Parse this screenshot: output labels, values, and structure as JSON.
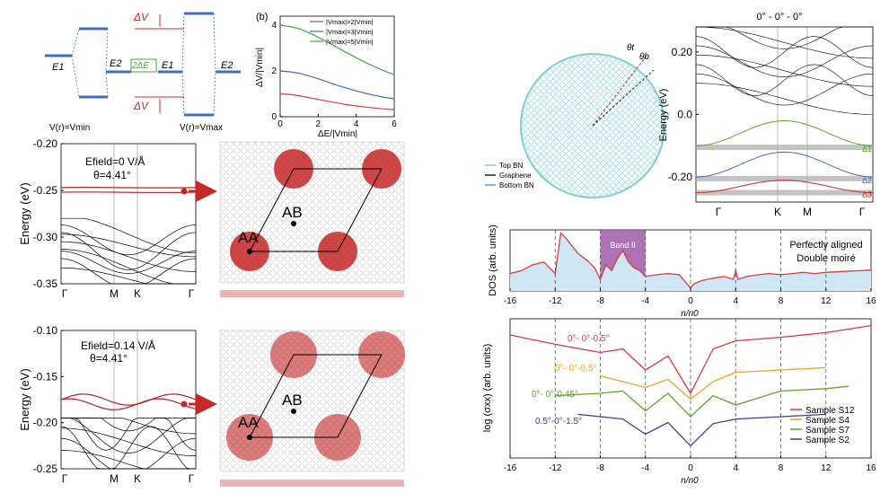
{
  "panel_levels": {
    "e1_left": "E1",
    "e2_mid": "E2",
    "e1_mid": "E1",
    "e2_right": "E2",
    "delta_v": "ΔV",
    "two_delta_e": "2ΔE",
    "vmin_label": "V(r)=Vmin",
    "vmax_label": "V(r)=Vmax"
  },
  "panel_b": {
    "tag": "(b)",
    "xlabel": "ΔE/|Vmin|",
    "ylabel": "ΔV/|Vmin|"
  },
  "band_top": {
    "ylabel": "Energy (eV)",
    "annotation_field": "Efield=0 V/Å",
    "annotation_theta": "θ=4.41°",
    "xticks": [
      "Γ",
      "M",
      "K",
      "Γ"
    ],
    "colors": {
      "flat": "#b22222",
      "bands": "#000000"
    }
  },
  "band_bottom": {
    "ylabel": "Energy (eV)",
    "annotation_field": "Efield=0.14 V/Å",
    "annotation_theta": "θ=4.41°",
    "xticks": [
      "Γ",
      "M",
      "K",
      "Γ"
    ]
  },
  "moire_top": {
    "aa": "AA",
    "ab": "AB"
  },
  "moire_bottom": {
    "aa": "AA",
    "ab": "AB"
  },
  "schematic": {
    "theta_t": "θt",
    "theta_b": "θb",
    "legend": [
      {
        "label": "Top BN",
        "color": "#7ecfd0"
      },
      {
        "label": "Graphene",
        "color": "#222222"
      },
      {
        "label": "Bottom BN",
        "color": "#4a9fd8"
      }
    ]
  },
  "band_right": {
    "title": "0° - 0° - 0°",
    "ylabel": "Energy (eV)",
    "xticks": [
      "Γ",
      "K",
      "M",
      "Γ"
    ],
    "gap_labels": [
      "Δ1",
      "Δ2",
      "Δ3"
    ]
  },
  "dos_panel": {
    "ylabel": "DOS (arb. units)",
    "xlabel": "n/n0",
    "band_label": "Band II",
    "note": "Perfectly aligned Double moiré"
  },
  "sigma_panel": {
    "ylabel": "log (σxx) (arb. units)",
    "xlabel": "n/n0",
    "curve_labels": [
      "0°- 0°-0.5°",
      "0°- 0°-0.5°",
      "0°- 0°-0.45°",
      "0.5°-0°-1.5°"
    ]
  },
  "chart_data": [
    {
      "type": "line",
      "title": "",
      "xlabel": "ΔE/|Vmin|",
      "ylabel": "ΔV/|Vmin|",
      "xlim": [
        0,
        6
      ],
      "ylim": [
        0,
        4.4
      ],
      "xticks": [
        0,
        2,
        4,
        6
      ],
      "yticks": [
        0,
        2,
        4
      ],
      "x": [
        0,
        0.5,
        1,
        1.5,
        2,
        2.5,
        3,
        3.5,
        4,
        4.5,
        5,
        5.5,
        6
      ],
      "series": [
        {
          "name": "|Vmax|=2|Vmin|",
          "color": "#d63c3c",
          "values": [
            1.0,
            0.98,
            0.92,
            0.84,
            0.76,
            0.68,
            0.6,
            0.53,
            0.47,
            0.42,
            0.38,
            0.34,
            0.31
          ]
        },
        {
          "name": "|Vmax|=3|Vmin|",
          "color": "#3b6fc4",
          "values": [
            2.0,
            1.97,
            1.9,
            1.79,
            1.66,
            1.52,
            1.38,
            1.25,
            1.13,
            1.02,
            0.93,
            0.85,
            0.78
          ]
        },
        {
          "name": "|Vmax|=5|Vmin|",
          "color": "#3fa53f",
          "values": [
            4.0,
            3.95,
            3.85,
            3.68,
            3.48,
            3.26,
            3.03,
            2.8,
            2.58,
            2.37,
            2.18,
            2.0,
            1.84
          ]
        }
      ],
      "legend": "top-right"
    },
    {
      "type": "line",
      "title": "",
      "ylabel": "Energy (eV)",
      "ylim": [
        -0.35,
        -0.2
      ],
      "yticks": [
        -0.35,
        -0.3,
        -0.25,
        -0.2
      ],
      "xticks": [
        "Γ",
        "M",
        "K",
        "Γ"
      ],
      "flat_bands": [
        -0.247,
        -0.252
      ]
    },
    {
      "type": "line",
      "title": "",
      "ylabel": "Energy (eV)",
      "ylim": [
        -0.25,
        -0.1
      ],
      "yticks": [
        -0.25,
        -0.2,
        -0.15,
        -0.1
      ],
      "xticks": [
        "Γ",
        "M",
        "K",
        "Γ"
      ],
      "flat_bands": [
        -0.175,
        -0.18
      ]
    },
    {
      "type": "line",
      "title": "0° - 0° - 0°",
      "ylabel": "Energy (eV)",
      "ylim": [
        -0.28,
        0.28
      ],
      "yticks": [
        -0.2,
        0.0,
        0.2
      ],
      "xticks": [
        "Γ",
        "K",
        "M",
        "Γ"
      ],
      "gaps": [
        {
          "label": "Δ1",
          "energy": -0.105
        },
        {
          "label": "Δ2",
          "energy": -0.205
        },
        {
          "label": "Δ3",
          "energy": -0.25
        }
      ]
    },
    {
      "type": "area",
      "title": "",
      "xlabel": "n/n0",
      "ylabel": "DOS (arb. units)",
      "xlim": [
        -16,
        16
      ],
      "xticks": [
        -16,
        -12,
        -8,
        -4,
        0,
        4,
        8,
        12,
        16
      ],
      "x": [
        -16,
        -15,
        -14,
        -13,
        -12.5,
        -12,
        -11.5,
        -11,
        -10,
        -9,
        -8.5,
        -8,
        -7.5,
        -7,
        -6.5,
        -6,
        -5.5,
        -5,
        -4.5,
        -4,
        -3,
        -2,
        -1,
        -0.3,
        0,
        0.3,
        1,
        2,
        3,
        3.8,
        4,
        4.2,
        5,
        6,
        7,
        8,
        9,
        10,
        11,
        12,
        13,
        14,
        15,
        16
      ],
      "values": [
        0.3,
        0.35,
        0.45,
        0.5,
        0.4,
        0.3,
        1.0,
        0.9,
        0.65,
        0.5,
        0.4,
        0.2,
        0.45,
        0.35,
        0.55,
        0.7,
        0.5,
        0.4,
        0.35,
        0.25,
        0.28,
        0.3,
        0.28,
        0.12,
        0.05,
        0.12,
        0.18,
        0.22,
        0.25,
        0.2,
        0.35,
        0.2,
        0.25,
        0.28,
        0.3,
        0.28,
        0.3,
        0.32,
        0.3,
        0.32,
        0.33,
        0.34,
        0.35,
        0.36
      ],
      "vlines": [
        -12,
        -8,
        -4,
        0,
        4,
        8,
        12
      ],
      "band_region": [
        -8,
        -4
      ]
    },
    {
      "type": "line",
      "title": "",
      "xlabel": "n/n0",
      "ylabel": "log (σxx) (arb. units)",
      "xlim": [
        -16,
        16
      ],
      "xticks": [
        -16,
        -12,
        -8,
        -4,
        0,
        4,
        8,
        12,
        16
      ],
      "series": [
        {
          "name": "Sample S12",
          "color": "#d63c3c",
          "x": [
            -16,
            -12,
            -8,
            -6,
            -4,
            -2,
            0,
            2,
            4,
            8,
            12,
            16
          ],
          "values": [
            0.9,
            0.82,
            0.75,
            0.78,
            0.6,
            0.72,
            0.4,
            0.78,
            0.85,
            0.88,
            0.92,
            0.98
          ]
        },
        {
          "name": "Sample S4",
          "color": "#f0a020",
          "x": [
            -8,
            -6,
            -4,
            -2,
            0,
            2,
            4,
            8,
            12
          ],
          "values": [
            0.55,
            0.5,
            0.45,
            0.52,
            0.35,
            0.5,
            0.58,
            0.6,
            0.62
          ]
        },
        {
          "name": "Sample S7",
          "color": "#5aa52a",
          "x": [
            -12,
            -8,
            -6,
            -4,
            -2,
            0,
            2,
            4,
            8,
            12,
            14
          ],
          "values": [
            0.38,
            0.4,
            0.42,
            0.25,
            0.4,
            0.2,
            0.38,
            0.3,
            0.42,
            0.44,
            0.46
          ]
        },
        {
          "name": "Sample S2",
          "color": "#3c3ca0",
          "x": [
            -10,
            -8,
            -6,
            -4,
            -2,
            0,
            2,
            4,
            8,
            12
          ],
          "values": [
            0.22,
            0.2,
            0.18,
            0.05,
            0.15,
            -0.05,
            0.14,
            0.18,
            0.2,
            0.22
          ]
        }
      ],
      "vlines": [
        -12,
        -8,
        -4,
        0,
        4,
        8,
        12
      ],
      "legend": "bottom-right"
    }
  ]
}
